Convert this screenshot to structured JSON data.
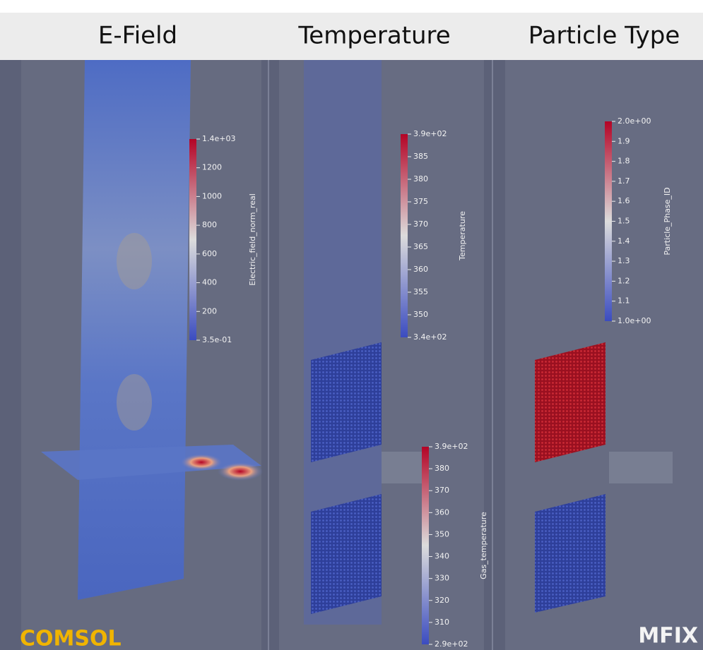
{
  "header": {
    "titles": [
      "E-Field",
      "Temperature",
      "Particle Type"
    ]
  },
  "colorbars": [
    {
      "title": "Electric_field_norm_real",
      "ticks": [
        "1.4e+03",
        "1200",
        "1000",
        "800",
        "600",
        "400",
        "200",
        "3.5e-01"
      ]
    },
    {
      "title": "Temperature",
      "ticks": [
        "3.9e+02",
        "385",
        "380",
        "375",
        "370",
        "365",
        "360",
        "355",
        "350",
        "3.4e+02"
      ]
    },
    {
      "title": "Gas_temperature",
      "ticks": [
        "3.9e+02",
        "380",
        "370",
        "360",
        "350",
        "340",
        "330",
        "320",
        "310",
        "2.9e+02"
      ]
    },
    {
      "title": "Particle_Phase_ID",
      "ticks": [
        "2.0e+00",
        "1.9",
        "1.8",
        "1.7",
        "1.6",
        "1.5",
        "1.4",
        "1.3",
        "1.2",
        "1.1",
        "1.0e+00"
      ]
    }
  ],
  "labels": {
    "left": "COMSOL",
    "right": "MFIX"
  }
}
